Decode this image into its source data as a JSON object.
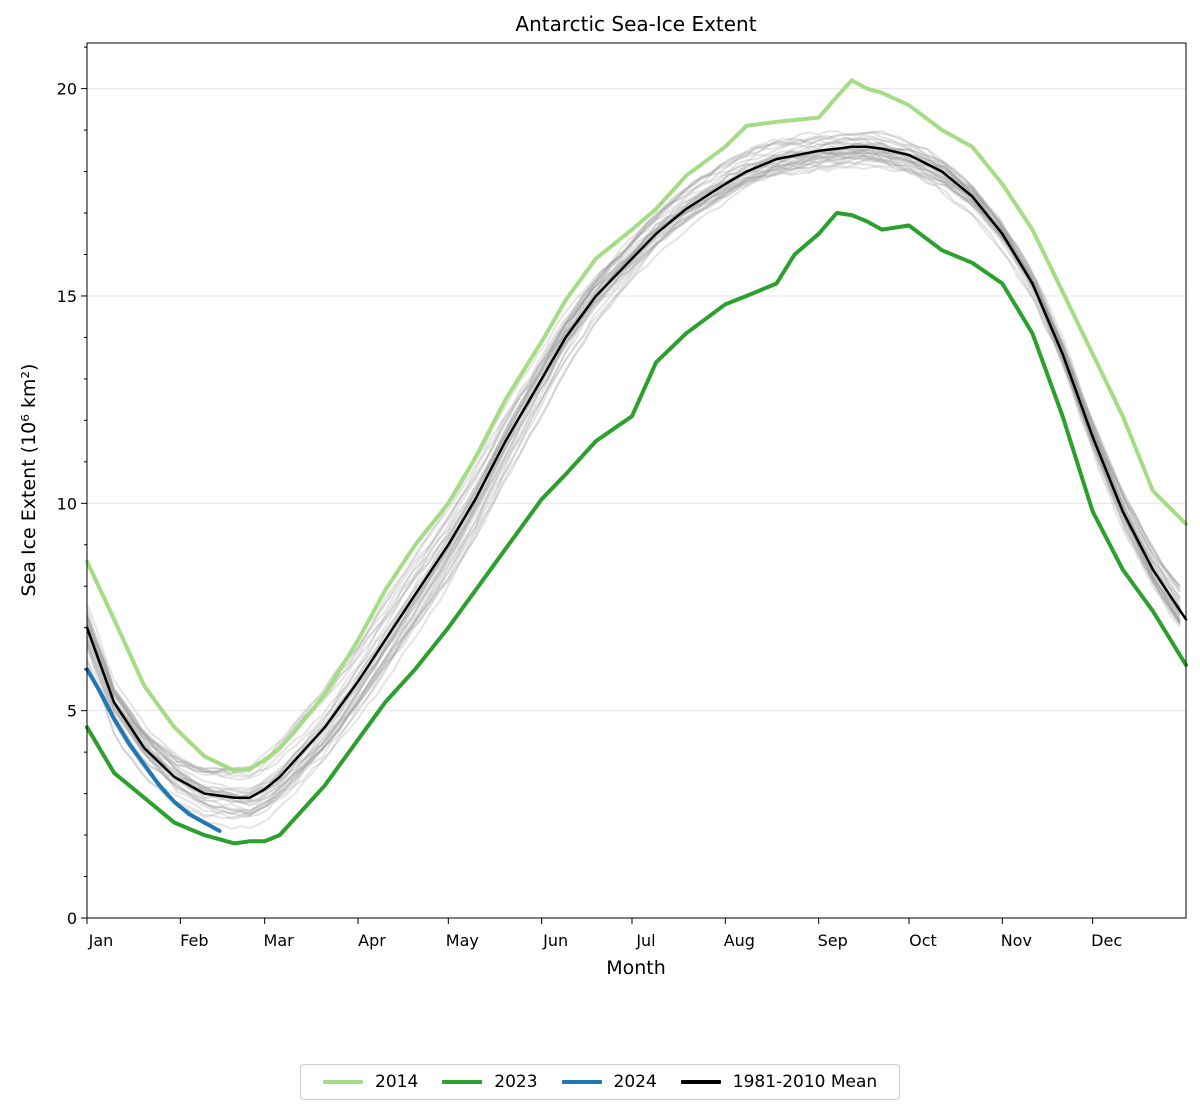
{
  "chart_data": {
    "type": "line",
    "title": "Antarctic Sea-Ice Extent",
    "xlabel": "Month",
    "ylabel": "Sea Ice Extent (10⁶ km²)",
    "ylim": [
      0,
      21.1
    ],
    "xlim": [
      1,
      366
    ],
    "grid": "horizontal",
    "legend_position": "bottom-center",
    "x_ticks": [
      {
        "label": "Jan",
        "day": 1
      },
      {
        "label": "Feb",
        "day": 32
      },
      {
        "label": "Mar",
        "day": 60
      },
      {
        "label": "Apr",
        "day": 91
      },
      {
        "label": "May",
        "day": 121
      },
      {
        "label": "Jun",
        "day": 152
      },
      {
        "label": "Jul",
        "day": 182
      },
      {
        "label": "Aug",
        "day": 213
      },
      {
        "label": "Sep",
        "day": 244
      },
      {
        "label": "Oct",
        "day": 274
      },
      {
        "label": "Nov",
        "day": 305
      },
      {
        "label": "Dec",
        "day": 335
      }
    ],
    "y_ticks": [
      0,
      5,
      10,
      15,
      20
    ],
    "background_years_color": "#9e9e9e",
    "series": [
      {
        "name": "2014",
        "color": "#a5dc86",
        "x": [
          1,
          10,
          20,
          30,
          40,
          50,
          55,
          60,
          65,
          70,
          80,
          91,
          100,
          110,
          121,
          130,
          140,
          152,
          160,
          170,
          182,
          190,
          200,
          213,
          220,
          230,
          244,
          250,
          255,
          260,
          265,
          274,
          285,
          295,
          305,
          315,
          325,
          335,
          345,
          355,
          366
        ],
        "y": [
          8.6,
          7.2,
          5.6,
          4.6,
          3.9,
          3.55,
          3.6,
          3.8,
          4.1,
          4.5,
          5.4,
          6.7,
          7.9,
          9.0,
          10.0,
          11.1,
          12.5,
          13.9,
          14.9,
          15.9,
          16.6,
          17.1,
          17.9,
          18.6,
          19.1,
          19.2,
          19.3,
          19.8,
          20.2,
          20.0,
          19.9,
          19.6,
          19.0,
          18.6,
          17.7,
          16.6,
          15.1,
          13.6,
          12.1,
          10.3,
          9.5
        ]
      },
      {
        "name": "2023",
        "color": "#2ca02c",
        "x": [
          1,
          10,
          20,
          30,
          40,
          50,
          55,
          60,
          65,
          70,
          80,
          91,
          100,
          110,
          121,
          130,
          140,
          152,
          160,
          170,
          182,
          190,
          200,
          213,
          220,
          230,
          236,
          244,
          250,
          255,
          260,
          265,
          274,
          285,
          295,
          305,
          315,
          325,
          335,
          345,
          355,
          366
        ],
        "y": [
          4.6,
          3.5,
          2.9,
          2.3,
          2.0,
          1.8,
          1.85,
          1.85,
          2.0,
          2.4,
          3.2,
          4.3,
          5.2,
          6.0,
          7.0,
          7.9,
          8.9,
          10.1,
          10.7,
          11.5,
          12.1,
          13.4,
          14.1,
          14.8,
          15.0,
          15.3,
          16.0,
          16.5,
          17.0,
          16.95,
          16.8,
          16.6,
          16.7,
          16.1,
          15.8,
          15.3,
          14.1,
          12.1,
          9.8,
          8.4,
          7.4,
          6.1
        ]
      },
      {
        "name": "2024",
        "color": "#1f77b4",
        "x": [
          1,
          5,
          10,
          15,
          20,
          25,
          30,
          35,
          40,
          45
        ],
        "y": [
          6.0,
          5.5,
          4.8,
          4.2,
          3.7,
          3.2,
          2.8,
          2.5,
          2.3,
          2.1
        ]
      },
      {
        "name": "1981-2010 Mean",
        "color": "#000000",
        "x": [
          1,
          10,
          20,
          30,
          40,
          50,
          55,
          60,
          65,
          70,
          80,
          91,
          100,
          110,
          121,
          130,
          140,
          152,
          160,
          170,
          182,
          190,
          200,
          213,
          220,
          230,
          244,
          250,
          255,
          260,
          265,
          274,
          285,
          295,
          305,
          315,
          325,
          335,
          345,
          355,
          366
        ],
        "y": [
          7.0,
          5.2,
          4.1,
          3.4,
          3.0,
          2.9,
          2.9,
          3.1,
          3.4,
          3.8,
          4.6,
          5.7,
          6.7,
          7.8,
          9.0,
          10.1,
          11.5,
          13.0,
          14.0,
          15.0,
          15.9,
          16.5,
          17.1,
          17.7,
          18.0,
          18.3,
          18.5,
          18.55,
          18.6,
          18.6,
          18.55,
          18.4,
          18.0,
          17.4,
          16.5,
          15.3,
          13.6,
          11.6,
          9.8,
          8.4,
          7.2
        ]
      }
    ]
  },
  "legend": {
    "items": [
      {
        "label": "2014",
        "color": "#a5dc86"
      },
      {
        "label": "2023",
        "color": "#2ca02c"
      },
      {
        "label": "2024",
        "color": "#1f77b4"
      },
      {
        "label": "1981-2010 Mean",
        "color": "#000000"
      }
    ]
  }
}
